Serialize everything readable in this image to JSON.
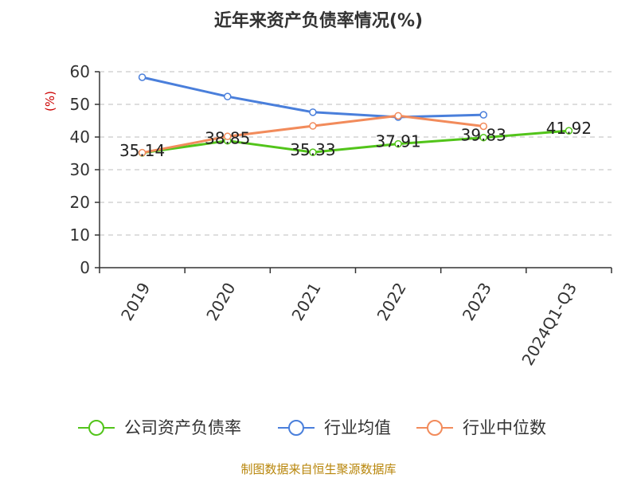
{
  "chart_data": {
    "type": "line",
    "title": "近年来资产负债率情况(%)",
    "ylabel": "(%)",
    "xlabel": "",
    "ylim": [
      0,
      60
    ],
    "yticks": [
      0,
      10,
      20,
      30,
      40,
      50,
      60
    ],
    "grid": true,
    "legend_position": "bottom",
    "categories": [
      "2019",
      "2020",
      "2021",
      "2022",
      "2023",
      "2024Q1-Q3"
    ],
    "series": [
      {
        "name": "公司资产负债率",
        "color": "#52c41a",
        "values": [
          35.14,
          38.85,
          35.33,
          37.91,
          39.83,
          41.92
        ],
        "labels": [
          "35.14",
          "38.85",
          "35.33",
          "37.91",
          "39.83",
          "41.92"
        ],
        "show_labels": true
      },
      {
        "name": "行业均值",
        "color": "#4a7fdb",
        "values": [
          58.3,
          52.4,
          47.6,
          46.1,
          46.8,
          null
        ],
        "show_labels": false
      },
      {
        "name": "行业中位数",
        "color": "#f28b5b",
        "values": [
          35.2,
          40.2,
          43.4,
          46.5,
          43.3,
          null
        ],
        "show_labels": false
      }
    ],
    "source": "制图数据来自恒生聚源数据库"
  }
}
